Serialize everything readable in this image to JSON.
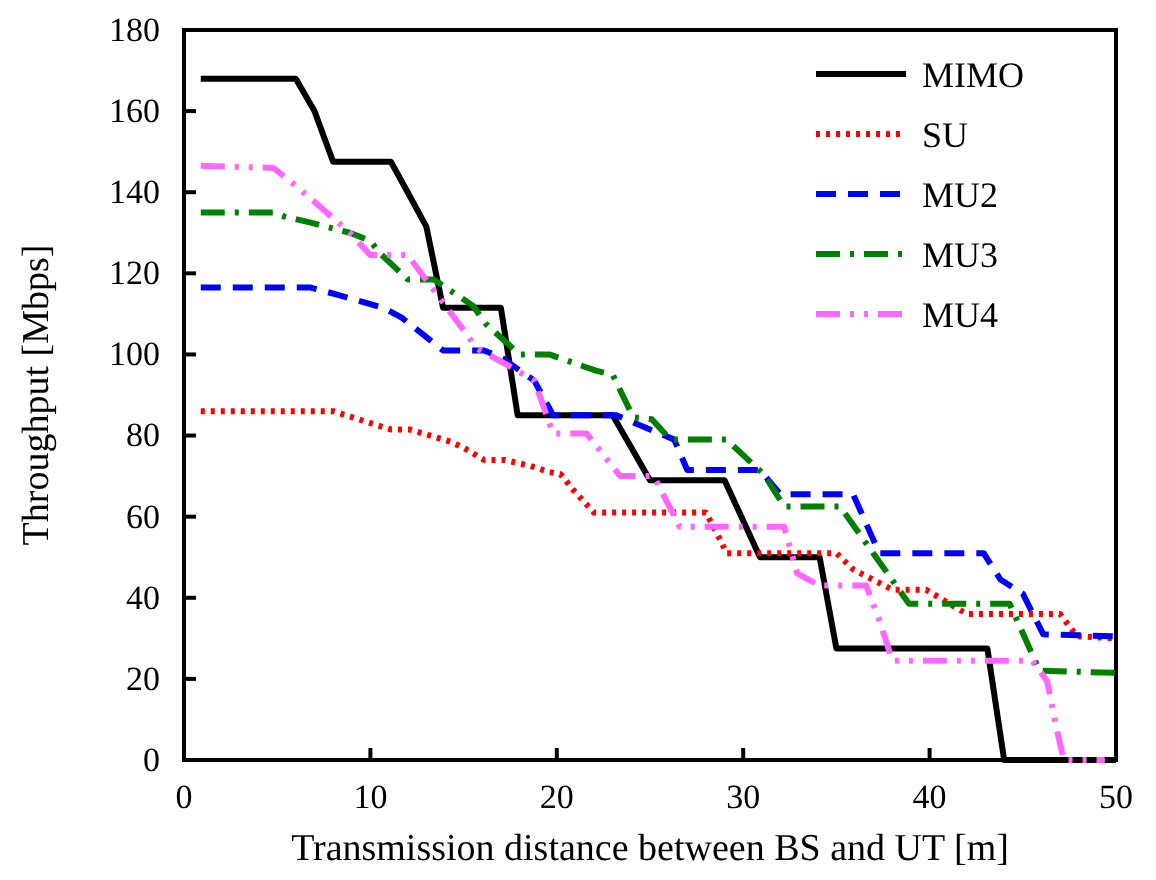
{
  "chart_data": {
    "type": "line",
    "xlabel": "Transmission distance between BS and UT [m]",
    "ylabel": "Throughput [Mbps]",
    "xlim": [
      0,
      50
    ],
    "xticks": [
      0,
      10,
      20,
      30,
      40,
      50
    ],
    "ylim": [
      0,
      180
    ],
    "yticks": [
      0,
      20,
      40,
      60,
      80,
      100,
      120,
      140,
      160,
      180
    ],
    "grid": false,
    "legend": "top right",
    "marker": "none",
    "series": [
      {
        "name": "MIMO",
        "color": "#000000",
        "line_style": "solid",
        "x": [
          0.9,
          6.0,
          7.0,
          8.0,
          11.1,
          12.0,
          13.0,
          13.9,
          17.0,
          17.9,
          23.0,
          25.0,
          29.0,
          30.9,
          34.1,
          35.0,
          43.1,
          44.0,
          50.0
        ],
        "values": [
          168,
          168,
          160,
          147.5,
          147.5,
          140,
          131.5,
          111.5,
          111.5,
          85,
          85,
          69,
          69,
          50,
          50,
          27.5,
          27.5,
          0,
          0
        ]
      },
      {
        "name": "SU",
        "color": "#ff0000",
        "line_style": "dotted",
        "x": [
          0.9,
          8.0,
          11.1,
          12.1,
          14.3,
          15.0,
          16.1,
          17.2,
          18.6,
          19.6,
          20.2,
          20.9,
          22.0,
          28.0,
          28.8,
          29.1,
          35.0,
          35.9,
          38.0,
          39.8,
          42.0,
          47.0,
          47.9,
          50.0
        ],
        "values": [
          86,
          86,
          81.5,
          81.5,
          78.5,
          77,
          74,
          74,
          72.5,
          71,
          70.5,
          66.5,
          61,
          61,
          54,
          51,
          51,
          47,
          42,
          42,
          36,
          36,
          30.5,
          30
        ]
      },
      {
        "name": "MU2",
        "color": "#0000ff",
        "line_style": "dashed",
        "x": [
          0.9,
          6.8,
          8.4,
          10.7,
          11.7,
          13.9,
          16.1,
          17.1,
          18.8,
          19.8,
          23.2,
          26.3,
          27.0,
          29.3,
          30.9,
          32.0,
          35.9,
          37.3,
          42.9,
          43.8,
          45.0,
          46.1,
          50.0
        ],
        "values": [
          116.5,
          116.5,
          114.5,
          111.5,
          109,
          101,
          101,
          99,
          93.5,
          85,
          85,
          79,
          71.5,
          71.5,
          71.5,
          65.5,
          65.5,
          51,
          51,
          44.5,
          41,
          31,
          30.5
        ]
      },
      {
        "name": "MU3",
        "color": "#008000",
        "line_style": "dashdot",
        "x": [
          0.9,
          4.8,
          5.4,
          6.8,
          8.9,
          10.0,
          10.5,
          12.0,
          13.4,
          15.5,
          16.2,
          18.0,
          19.6,
          22.1,
          23.0,
          24.1,
          25.1,
          26.1,
          29.1,
          31.1,
          32.2,
          35.2,
          38.9,
          44.3,
          45.9,
          50.0
        ],
        "values": [
          135,
          135,
          134,
          132.5,
          130,
          128,
          125,
          118.5,
          118.5,
          112,
          107.5,
          100,
          100,
          96,
          95,
          84.5,
          84,
          79,
          79,
          70.5,
          62.5,
          62.5,
          38.5,
          38.5,
          22,
          21.5
        ]
      },
      {
        "name": "MU4",
        "color": "#ff66ff",
        "line_style": "dashdotdot",
        "x": [
          0.9,
          4.8,
          5.9,
          7.9,
          8.9,
          10.0,
          12.0,
          15.0,
          15.7,
          17.5,
          18.8,
          19.8,
          21.6,
          23.4,
          25.2,
          26.6,
          28.2,
          32.2,
          32.9,
          34.1,
          36.6,
          37.3,
          38.0,
          45.5,
          46.3,
          46.8,
          47.2,
          49.4
        ],
        "values": [
          146.5,
          146,
          142,
          134,
          130,
          124.5,
          124.5,
          106,
          101.5,
          97,
          93.5,
          80.5,
          80.5,
          70,
          70,
          57.5,
          57.5,
          57.5,
          46,
          43,
          43,
          34.5,
          24.5,
          24.5,
          19.5,
          8,
          0,
          0
        ]
      }
    ]
  }
}
